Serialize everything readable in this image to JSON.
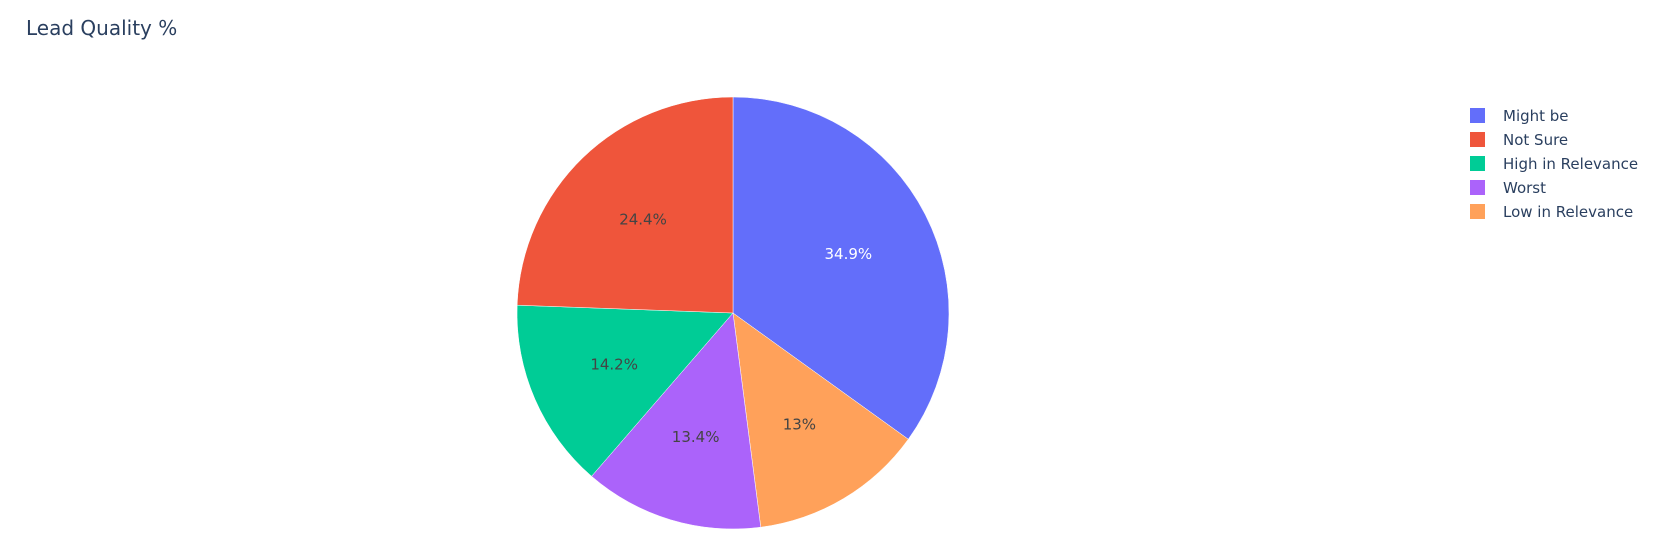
{
  "chart_data": {
    "type": "pie",
    "title": "Lead Quality %",
    "labels": [
      "Might be",
      "Not Sure",
      "High in Relevance",
      "Worst",
      "Low in Relevance"
    ],
    "values": [
      34.9,
      24.4,
      14.2,
      13.4,
      13
    ],
    "slice_labels": [
      "34.9%",
      "24.4%",
      "14.2%",
      "13.4%",
      "13%"
    ],
    "pie_order": [
      "Might be",
      "Low in Relevance",
      "Worst",
      "High in Relevance",
      "Not Sure"
    ],
    "start_angle": "top",
    "direction": "clockwise",
    "colors": {
      "Might be": "#636efa",
      "Not Sure": "#ef553b",
      "High in Relevance": "#00cc96",
      "Worst": "#ab63fa",
      "Low in Relevance": "#ffa15a"
    },
    "label_colors": {
      "Might be": "#ffffff",
      "Not Sure": "#444444",
      "High in Relevance": "#444444",
      "Worst": "#444444",
      "Low in Relevance": "#444444"
    },
    "legend": {
      "position": "top-right",
      "items": [
        "Might be",
        "Not Sure",
        "High in Relevance",
        "Worst",
        "Low in Relevance"
      ]
    }
  }
}
